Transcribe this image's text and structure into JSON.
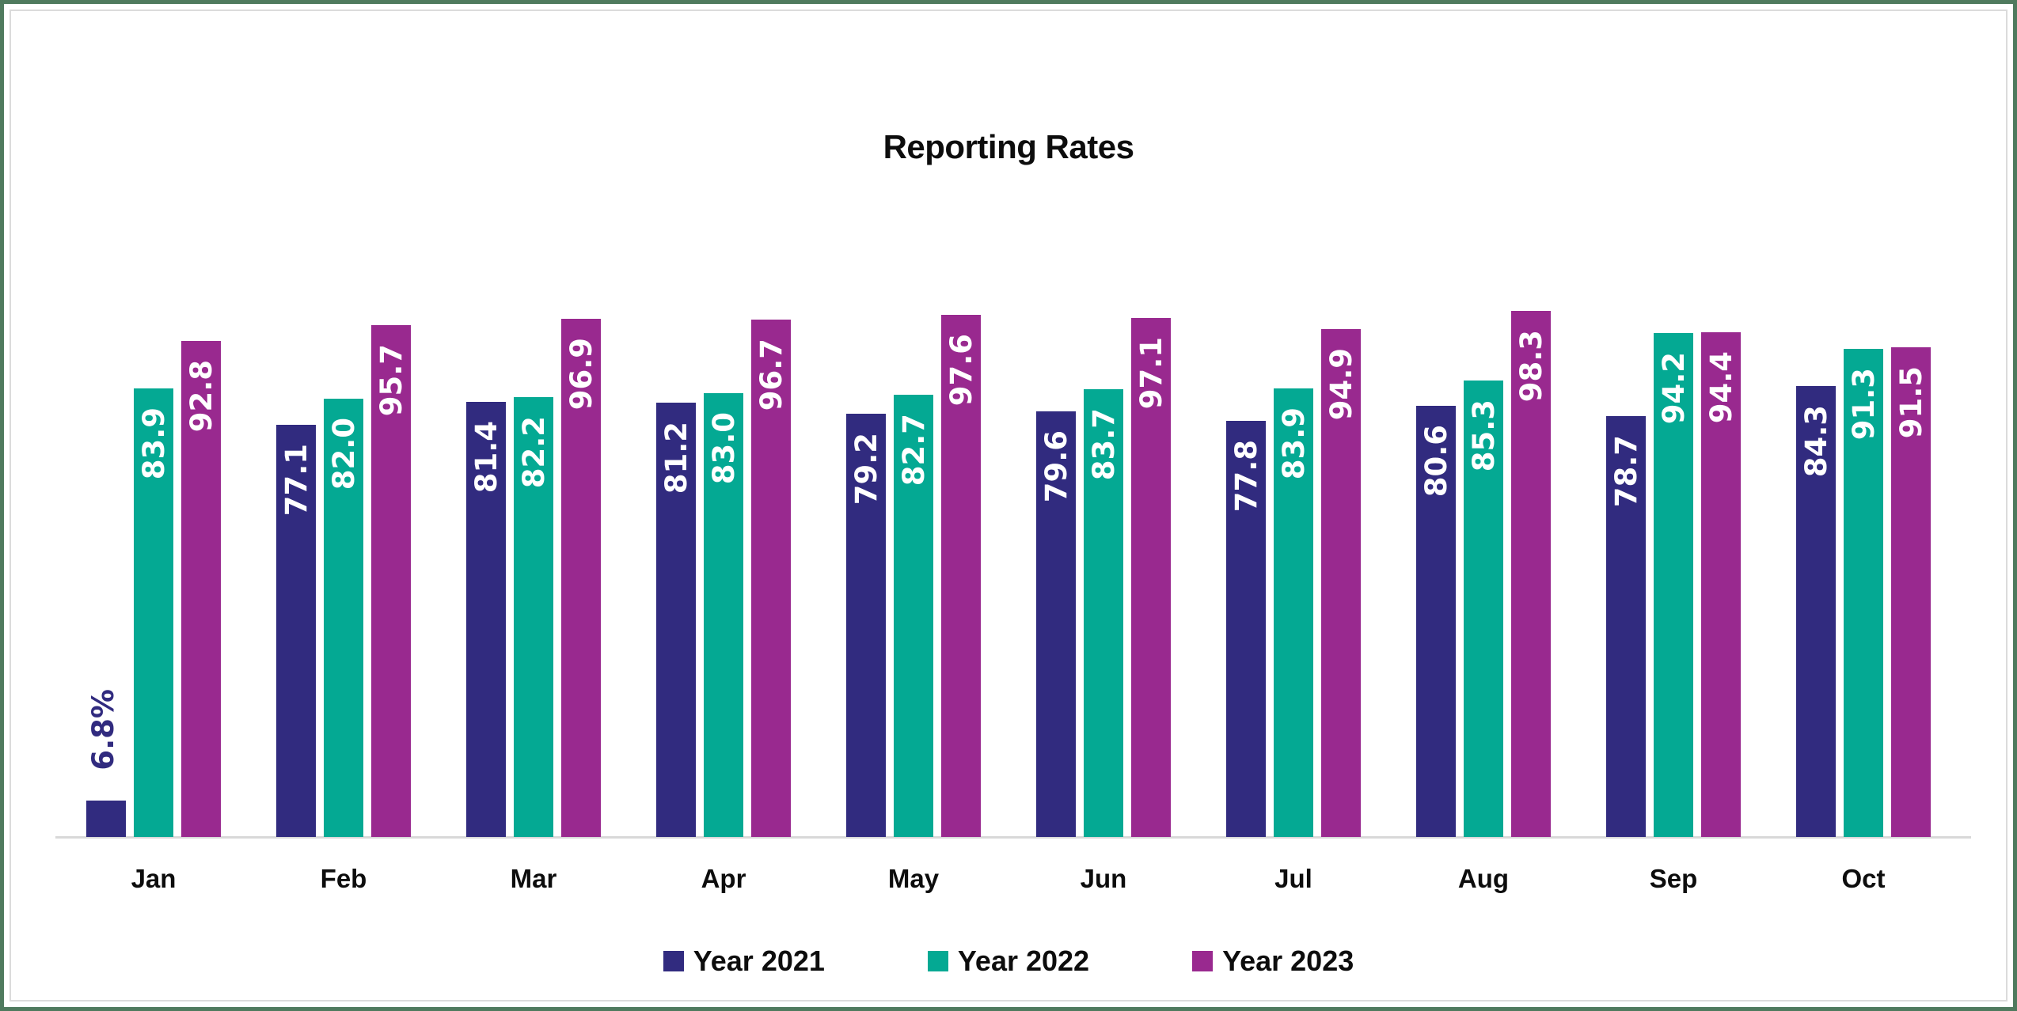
{
  "frame": {
    "border_color": "#4F7A5E",
    "inner_border_color": "#DBDBDB",
    "background": "#FFFFFF"
  },
  "chart_data": {
    "type": "bar",
    "title": "Reporting Rates",
    "categories": [
      "Jan",
      "Feb",
      "Mar",
      "Apr",
      "May",
      "Jun",
      "Jul",
      "Aug",
      "Sep",
      "Oct"
    ],
    "series": [
      {
        "name": "Year 2021",
        "color": "#312B7F",
        "pattern": "dotted",
        "values": [
          6.8,
          77.1,
          81.4,
          81.2,
          79.2,
          79.6,
          77.8,
          80.6,
          78.7,
          84.3
        ],
        "labels": [
          "6.8%",
          "77.1",
          "81.4",
          "81.2",
          "79.2",
          "79.6",
          "77.8",
          "80.6",
          "78.7",
          "84.3"
        ]
      },
      {
        "name": "Year 2022",
        "color": "#04A993",
        "pattern": "solid",
        "values": [
          83.9,
          82.0,
          82.2,
          83.0,
          82.7,
          83.7,
          83.9,
          85.3,
          94.2,
          91.3
        ],
        "labels": [
          "83.9",
          "82.0",
          "82.2",
          "83.0",
          "82.7",
          "83.7",
          "83.9",
          "85.3",
          "94.2",
          "91.3"
        ]
      },
      {
        "name": "Year 2023",
        "color": "#99298F",
        "pattern": "solid",
        "values": [
          92.8,
          95.7,
          96.9,
          96.7,
          97.6,
          97.1,
          94.9,
          98.3,
          94.4,
          91.5
        ],
        "labels": [
          "92.8",
          "95.7",
          "96.9",
          "96.7",
          "97.6",
          "97.1",
          "94.9",
          "98.3",
          "94.4",
          "91.5"
        ]
      }
    ],
    "ylim": [
      0,
      100
    ],
    "grid": false,
    "y_axis_labels": false,
    "legend_position": "bottom",
    "value_labels": {
      "rotation": -90,
      "inside_color": "#FFFFFF",
      "outside_rule": "short bars labeled above in series color"
    },
    "axis_line_color": "#D9D9D9",
    "text_color": "#0d0d0d"
  }
}
